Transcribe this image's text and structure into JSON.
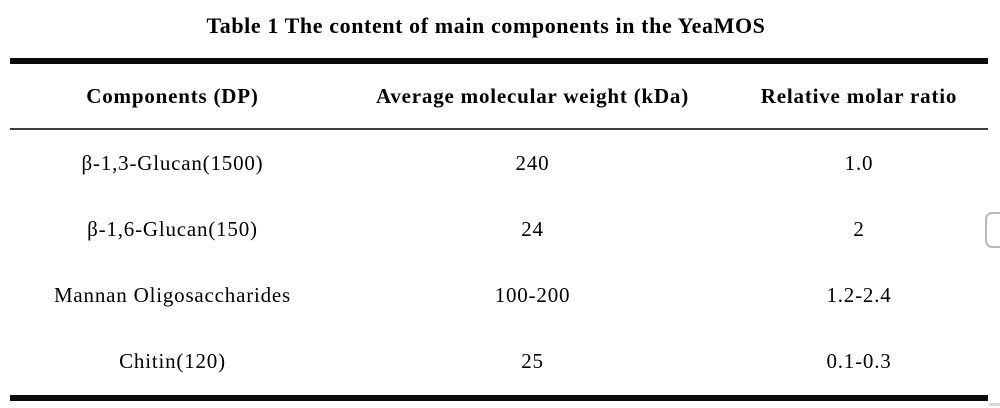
{
  "title": "Table 1 The content of main components in the YeaMOS",
  "table": {
    "columns": [
      "Components (DP)",
      "Average molecular weight (kDa)",
      "Relative molar ratio"
    ],
    "rows": [
      [
        "β-1,3-Glucan(1500)",
        "240",
        "1.0"
      ],
      [
        "β-1,6-Glucan(150)",
        "24",
        "2"
      ],
      [
        "Mannan Oligosaccharides",
        "100-200",
        "1.2-2.4"
      ],
      [
        "Chitin(120)",
        "25",
        "0.1-0.3"
      ]
    ]
  },
  "colors": {
    "text": "#000000",
    "rule_thick": "#0b0b0b",
    "rule_thin": "#3d3d3d",
    "background": "#ffffff",
    "edge_fragment_border": "#b9b9b9"
  }
}
